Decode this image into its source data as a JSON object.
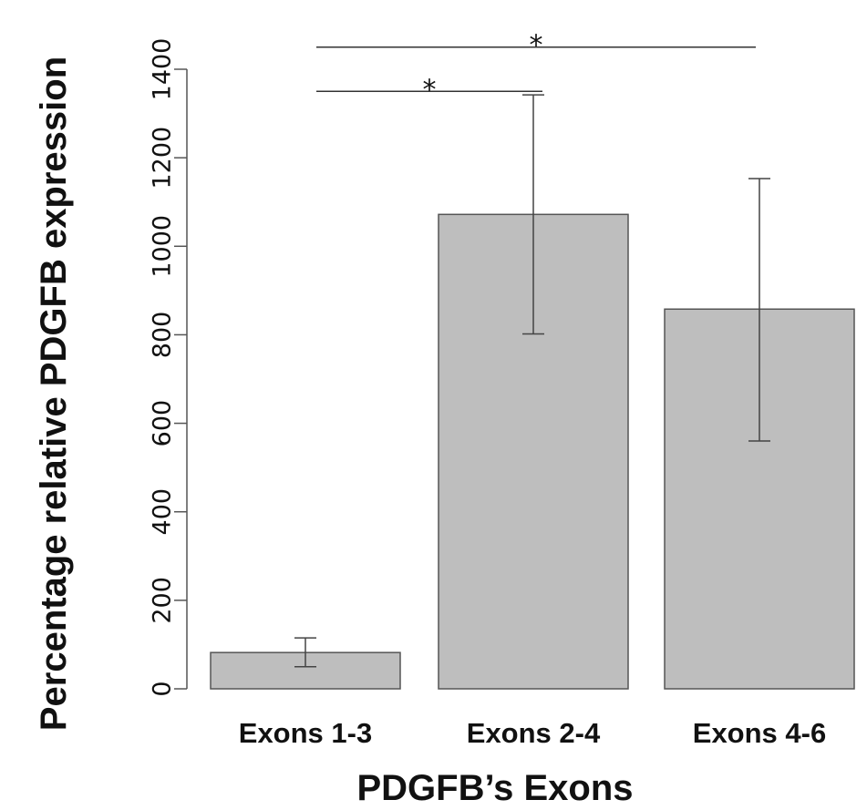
{
  "panel_label": "",
  "chart_data": {
    "type": "bar",
    "title": "",
    "xlabel": "PDGFB’s Exons",
    "ylabel": "Percentage relative PDGFB expression",
    "categories": [
      "Exons 1-3",
      "Exons 2-4",
      "Exons 4-6"
    ],
    "values": [
      82,
      1072,
      858
    ],
    "error_low": [
      50,
      802,
      560
    ],
    "error_high": [
      115,
      1342,
      1153
    ],
    "ylim": [
      0,
      1400
    ],
    "yticks": [
      0,
      200,
      400,
      600,
      800,
      1000,
      1200,
      1400
    ],
    "bar_color": "#bebebe",
    "grid": false,
    "annotations": [
      {
        "label": "*",
        "from": "Exons 1-3",
        "to": "Exons 2-4",
        "y": 1350
      },
      {
        "label": "*",
        "from": "Exons 1-3",
        "to": "Exons 4-6",
        "y": 1450
      }
    ]
  }
}
